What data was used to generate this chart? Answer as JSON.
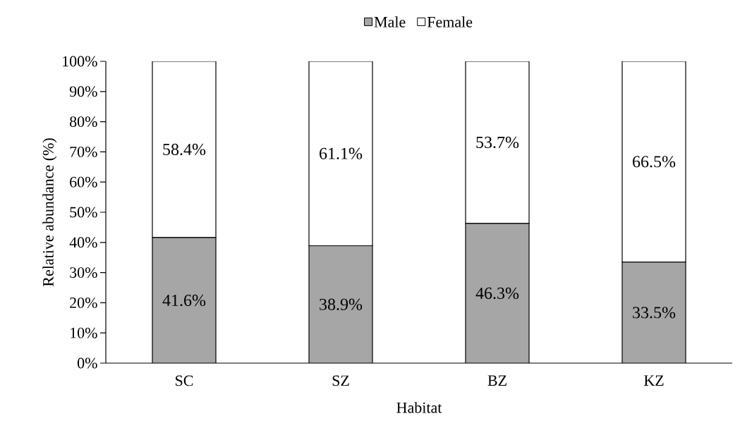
{
  "chart_data": {
    "type": "bar",
    "stacked": true,
    "legend": "top",
    "xlabel": "Habitat",
    "ylabel": "Relative abundance (%)",
    "categories": [
      "SC",
      "SZ",
      "BZ",
      "KZ"
    ],
    "series": [
      {
        "name": "Male",
        "color": "#a6a6a6",
        "values": [
          41.6,
          38.9,
          46.3,
          33.5
        ],
        "value_labels": [
          "41.6%",
          "38.9%",
          "46.3%",
          "33.5%"
        ]
      },
      {
        "name": "Female",
        "color": "#ffffff",
        "values": [
          58.4,
          61.1,
          53.7,
          66.5
        ],
        "value_labels": [
          "58.4%",
          "61.1%",
          "53.7%",
          "66.5%"
        ]
      }
    ],
    "ylim": [
      0,
      100
    ],
    "yticks": [
      {
        "value": 0,
        "label": "0%"
      },
      {
        "value": 10,
        "label": "10%"
      },
      {
        "value": 20,
        "label": "20%"
      },
      {
        "value": 30,
        "label": "30%"
      },
      {
        "value": 40,
        "label": "40%"
      },
      {
        "value": 50,
        "label": "50%"
      },
      {
        "value": 60,
        "label": "60%"
      },
      {
        "value": 70,
        "label": "70%"
      },
      {
        "value": 80,
        "label": "80%"
      },
      {
        "value": 90,
        "label": "90%"
      },
      {
        "value": 100,
        "label": "100%"
      }
    ]
  }
}
